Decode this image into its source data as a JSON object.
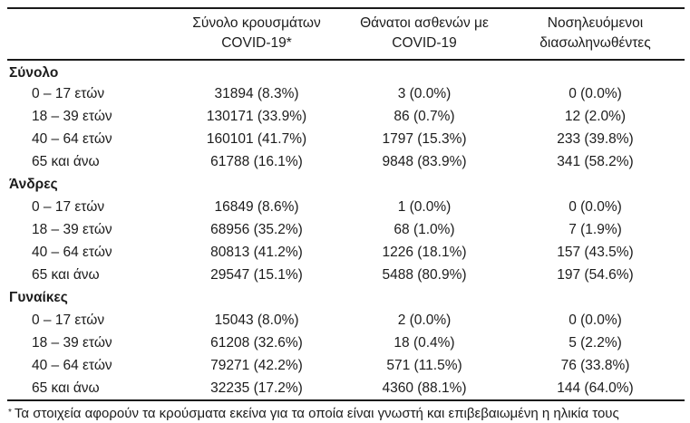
{
  "colors": {
    "background": "#ffffff",
    "text": "#1c1c1c",
    "rule": "#1a1a1a"
  },
  "table": {
    "header": {
      "label": "",
      "cases": {
        "line1": "Σύνολο κρουσμάτων",
        "line2": "COVID-19*"
      },
      "deaths": {
        "line1": "Θάνατοι ασθενών με",
        "line2": "COVID-19"
      },
      "intubated": {
        "line1": "Νοσηλευόμενοι",
        "line2": "διασωληνωθέντες"
      }
    },
    "sections": [
      {
        "label": "Σύνολο",
        "rows": [
          {
            "age": "0 – 17 ετών",
            "cases": "31894 (8.3%)",
            "deaths": "3 (0.0%)",
            "intubated": "0 (0.0%)"
          },
          {
            "age": "18 – 39 ετών",
            "cases": "130171 (33.9%)",
            "deaths": "86 (0.7%)",
            "intubated": "12 (2.0%)"
          },
          {
            "age": "40 – 64 ετών",
            "cases": "160101 (41.7%)",
            "deaths": "1797 (15.3%)",
            "intubated": "233 (39.8%)"
          },
          {
            "age": "65 και άνω",
            "cases": "61788 (16.1%)",
            "deaths": "9848 (83.9%)",
            "intubated": "341 (58.2%)"
          }
        ]
      },
      {
        "label": "Άνδρες",
        "rows": [
          {
            "age": "0 – 17 ετών",
            "cases": "16849 (8.6%)",
            "deaths": "1 (0.0%)",
            "intubated": "0 (0.0%)"
          },
          {
            "age": "18 – 39 ετών",
            "cases": "68956 (35.2%)",
            "deaths": "68 (1.0%)",
            "intubated": "7 (1.9%)"
          },
          {
            "age": "40 – 64 ετών",
            "cases": "80813 (41.2%)",
            "deaths": "1226 (18.1%)",
            "intubated": "157 (43.5%)"
          },
          {
            "age": "65 και άνω",
            "cases": "29547 (15.1%)",
            "deaths": "5488 (80.9%)",
            "intubated": "197 (54.6%)"
          }
        ]
      },
      {
        "label": "Γυναίκες",
        "rows": [
          {
            "age": "0 – 17 ετών",
            "cases": "15043 (8.0%)",
            "deaths": "2 (0.0%)",
            "intubated": "0 (0.0%)"
          },
          {
            "age": "18 – 39 ετών",
            "cases": "61208 (32.6%)",
            "deaths": "18 (0.4%)",
            "intubated": "5 (2.2%)"
          },
          {
            "age": "40 – 64 ετών",
            "cases": "79271 (42.2%)",
            "deaths": "571 (11.5%)",
            "intubated": "76 (33.8%)"
          },
          {
            "age": "65 και άνω",
            "cases": "32235 (17.2%)",
            "deaths": "4360 (88.1%)",
            "intubated": "144 (64.0%)"
          }
        ]
      }
    ],
    "footnote": {
      "marker": "*",
      "text": "Τα στοιχεία αφορούν τα κρούσματα εκείνα για τα οποία είναι γνωστή και επιβεβαιωμένη η ηλικία τους"
    }
  }
}
